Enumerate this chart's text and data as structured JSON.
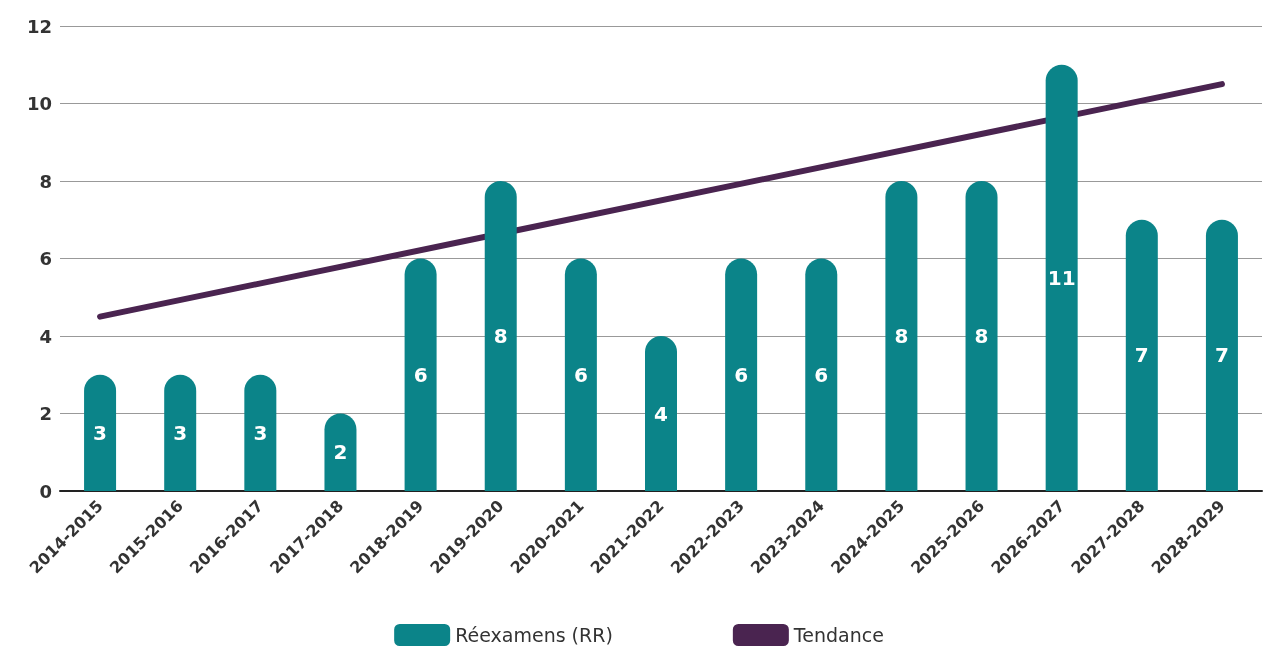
{
  "chart_data": {
    "type": "bar",
    "categories": [
      "2014-2015",
      "2015-2016",
      "2016-2017",
      "2017-2018",
      "2018-2019",
      "2019-2020",
      "2020-2021",
      "2021-2022",
      "2022-2023",
      "2023-2024",
      "2024-2025",
      "2025-2026",
      "2026-2027",
      "2027-2028",
      "2028-2029"
    ],
    "series": [
      {
        "name": "Réexamens (RR)",
        "color": "#0b8489",
        "values": [
          3,
          3,
          3,
          2,
          6,
          8,
          6,
          4,
          6,
          6,
          8,
          8,
          11,
          7,
          7
        ],
        "value_labels": [
          "3",
          "3",
          "3",
          "2",
          "6",
          "8",
          "6",
          "4",
          "6",
          "6",
          "8",
          "8",
          "11",
          "7",
          "7"
        ]
      },
      {
        "name": "Tendance",
        "type": "line",
        "color": "#4a2450",
        "x": [
          "2014-2015",
          "2028-2029"
        ],
        "values": [
          4.5,
          10.5
        ]
      }
    ],
    "ylim": [
      0,
      12
    ],
    "yticks": [
      0,
      2,
      4,
      6,
      8,
      10,
      12
    ],
    "grid": "y",
    "legend": "bottom",
    "marker": "none"
  }
}
